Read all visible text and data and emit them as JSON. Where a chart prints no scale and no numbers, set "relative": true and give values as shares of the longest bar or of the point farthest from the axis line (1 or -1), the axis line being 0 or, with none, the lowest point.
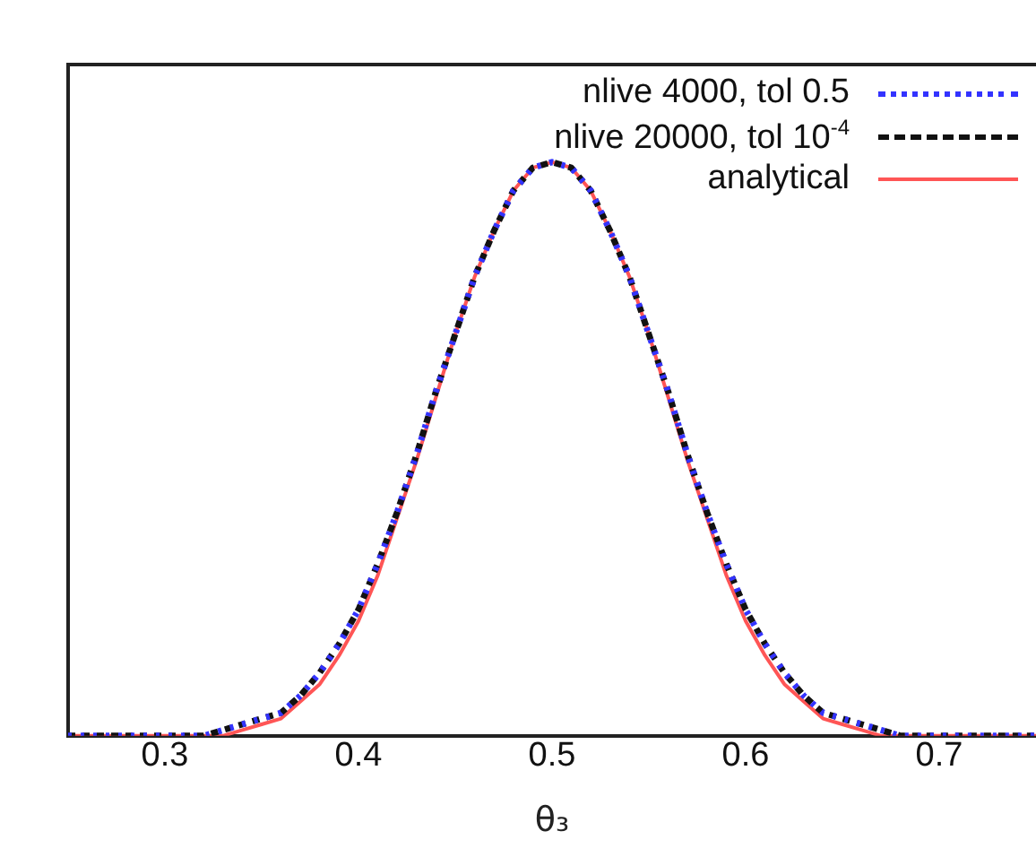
{
  "chart_data": {
    "type": "line",
    "xlabel": "θ₃",
    "relative": true,
    "x": [
      0.25,
      0.26,
      0.27,
      0.28,
      0.29,
      0.3,
      0.31,
      0.32,
      0.33,
      0.34,
      0.35,
      0.36,
      0.37,
      0.38,
      0.39,
      0.4,
      0.41,
      0.42,
      0.43,
      0.44,
      0.45,
      0.46,
      0.47,
      0.48,
      0.49,
      0.5,
      0.51,
      0.52,
      0.53,
      0.54,
      0.55,
      0.56,
      0.57,
      0.58,
      0.59,
      0.6,
      0.61,
      0.62,
      0.63,
      0.64,
      0.65,
      0.66,
      0.67,
      0.68,
      0.69,
      0.7,
      0.71,
      0.72,
      0.73,
      0.74,
      0.75
    ],
    "xlim": [
      0.25,
      0.75
    ],
    "xticks": [
      0.3,
      0.4,
      0.5,
      0.6,
      0.7
    ],
    "series": [
      {
        "name": "nlive 4000, tol 0.5",
        "color": "#3333ff",
        "line_style": "dotted",
        "values": [
          0,
          0,
          0,
          0,
          0,
          0,
          0,
          0,
          0.01,
          0.02,
          0.03,
          0.04,
          0.07,
          0.11,
          0.16,
          0.22,
          0.3,
          0.39,
          0.49,
          0.6,
          0.7,
          0.8,
          0.88,
          0.95,
          0.99,
          1,
          0.99,
          0.95,
          0.88,
          0.8,
          0.7,
          0.6,
          0.49,
          0.39,
          0.3,
          0.22,
          0.16,
          0.11,
          0.07,
          0.04,
          0.03,
          0.02,
          0.01,
          0,
          0,
          0,
          0,
          0,
          0,
          0,
          0
        ]
      },
      {
        "name": "nlive 20000, tol 10$^{-4}$",
        "color": "#111111",
        "line_style": "dashed",
        "values": [
          0,
          0,
          0,
          0,
          0,
          0,
          0,
          0,
          0.01,
          0.02,
          0.03,
          0.04,
          0.07,
          0.11,
          0.16,
          0.22,
          0.3,
          0.39,
          0.49,
          0.6,
          0.7,
          0.8,
          0.88,
          0.95,
          0.99,
          1,
          0.99,
          0.95,
          0.88,
          0.8,
          0.7,
          0.6,
          0.49,
          0.39,
          0.3,
          0.22,
          0.16,
          0.11,
          0.07,
          0.04,
          0.03,
          0.02,
          0.01,
          0,
          0,
          0,
          0,
          0,
          0,
          0,
          0
        ]
      },
      {
        "name": "analytical",
        "color": "#ff5555",
        "line_style": "solid",
        "values": [
          0,
          0,
          0,
          0,
          0,
          0,
          0,
          0,
          0,
          0.01,
          0.02,
          0.03,
          0.06,
          0.09,
          0.14,
          0.2,
          0.28,
          0.38,
          0.48,
          0.59,
          0.7,
          0.8,
          0.88,
          0.95,
          0.99,
          1,
          0.99,
          0.95,
          0.88,
          0.8,
          0.7,
          0.59,
          0.48,
          0.38,
          0.28,
          0.2,
          0.14,
          0.09,
          0.06,
          0.03,
          0.02,
          0.01,
          0,
          0,
          0,
          0,
          0,
          0,
          0,
          0,
          0
        ]
      }
    ],
    "legend": "top right",
    "grid": false
  }
}
